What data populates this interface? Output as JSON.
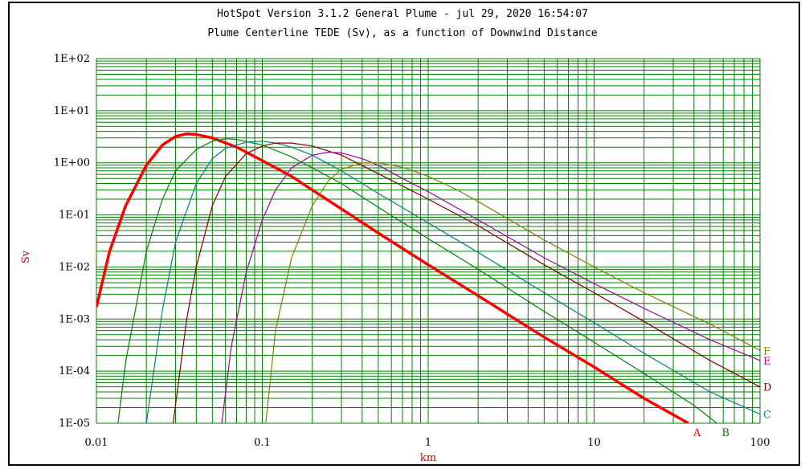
{
  "chart_data": {
    "type": "line",
    "title": "HotSpot Version 3.1.2 General Plume - jul 29, 2020 16:54:07",
    "subtitle": "Plume Centerline TEDE (Sv), as a function of Downwind Distance",
    "xlabel": "km",
    "ylabel": "Sv",
    "x_scale": "log",
    "y_scale": "log",
    "xlim": [
      0.01,
      100
    ],
    "ylim": [
      1e-05,
      100
    ],
    "x_ticks": [
      "0.01",
      "0.1",
      "1",
      "10",
      "100"
    ],
    "x_tick_values": [
      0.01,
      0.1,
      1,
      10,
      100
    ],
    "y_ticks": [
      "1E+02",
      "1E+01",
      "1E+00",
      "1E-01",
      "1E-02",
      "1E-03",
      "1E-04",
      "1E-05"
    ],
    "y_tick_values": [
      100,
      10,
      1,
      0.1,
      0.01,
      0.001,
      0.0001,
      1e-05
    ],
    "grid": true,
    "grid_color": "#008000",
    "series": [
      {
        "name": "A",
        "color": "#ff0000",
        "width": 3.5,
        "x": [
          0.01,
          0.012,
          0.015,
          0.02,
          0.025,
          0.03,
          0.035,
          0.04,
          0.05,
          0.07,
          0.1,
          0.15,
          0.2,
          0.3,
          0.5,
          1,
          2,
          5,
          10,
          20,
          37
        ],
        "y": [
          0.0017,
          0.02,
          0.15,
          0.9,
          2.2,
          3.2,
          3.6,
          3.5,
          3.0,
          2.0,
          1.1,
          0.55,
          0.3,
          0.13,
          0.045,
          0.011,
          0.0028,
          0.00045,
          0.00012,
          3e-05,
          1e-05
        ]
      },
      {
        "name": "B",
        "color": "#008000",
        "width": 1.2,
        "x": [
          0.0135,
          0.015,
          0.02,
          0.025,
          0.03,
          0.04,
          0.05,
          0.06,
          0.07,
          0.1,
          0.15,
          0.2,
          0.3,
          0.5,
          1,
          2,
          5,
          10,
          20,
          40,
          55
        ],
        "y": [
          1e-05,
          0.00015,
          0.02,
          0.2,
          0.7,
          1.8,
          2.6,
          2.9,
          2.8,
          2.2,
          1.3,
          0.8,
          0.4,
          0.14,
          0.035,
          0.009,
          0.0014,
          0.00036,
          9e-05,
          2.2e-05,
          1e-05
        ]
      },
      {
        "name": "C",
        "color": "#008080",
        "width": 1.2,
        "x": [
          0.02,
          0.025,
          0.03,
          0.04,
          0.05,
          0.06,
          0.08,
          0.1,
          0.12,
          0.15,
          0.2,
          0.3,
          0.5,
          1,
          2,
          5,
          10,
          20,
          50,
          100
        ],
        "y": [
          1e-05,
          0.0015,
          0.03,
          0.4,
          1.2,
          1.9,
          2.5,
          2.6,
          2.4,
          2.0,
          1.4,
          0.7,
          0.26,
          0.07,
          0.019,
          0.0032,
          0.00085,
          0.00022,
          4e-05,
          1.5e-05
        ]
      },
      {
        "name": "D",
        "color": "#800000",
        "width": 1.2,
        "x": [
          0.029,
          0.035,
          0.04,
          0.05,
          0.06,
          0.08,
          0.1,
          0.12,
          0.15,
          0.2,
          0.3,
          0.5,
          1,
          2,
          5,
          10,
          20,
          50,
          100
        ],
        "y": [
          1e-05,
          0.001,
          0.01,
          0.15,
          0.55,
          1.5,
          2.1,
          2.4,
          2.4,
          2.1,
          1.4,
          0.62,
          0.2,
          0.062,
          0.011,
          0.0032,
          0.0009,
          0.00016,
          5e-05
        ]
      },
      {
        "name": "E",
        "color": "#a000a0",
        "width": 1.2,
        "x": [
          0.057,
          0.065,
          0.08,
          0.1,
          0.12,
          0.15,
          0.2,
          0.25,
          0.3,
          0.4,
          0.5,
          0.7,
          1,
          2,
          5,
          10,
          20,
          50,
          100
        ],
        "y": [
          1e-05,
          0.0003,
          0.008,
          0.08,
          0.3,
          0.8,
          1.4,
          1.6,
          1.55,
          1.2,
          0.9,
          0.5,
          0.28,
          0.08,
          0.015,
          0.0048,
          0.0016,
          0.0004,
          0.00016
        ]
      },
      {
        "name": "F",
        "color": "#808000",
        "width": 1.2,
        "x": [
          0.105,
          0.12,
          0.15,
          0.2,
          0.25,
          0.3,
          0.4,
          0.5,
          0.7,
          1,
          1.5,
          2,
          5,
          10,
          20,
          50,
          100
        ],
        "y": [
          1e-05,
          0.0006,
          0.015,
          0.15,
          0.45,
          0.75,
          1.0,
          1.0,
          0.82,
          0.55,
          0.3,
          0.18,
          0.033,
          0.01,
          0.0032,
          0.0008,
          0.00025
        ]
      }
    ],
    "series_labels": [
      "A",
      "B",
      "C",
      "D",
      "E",
      "F"
    ]
  }
}
